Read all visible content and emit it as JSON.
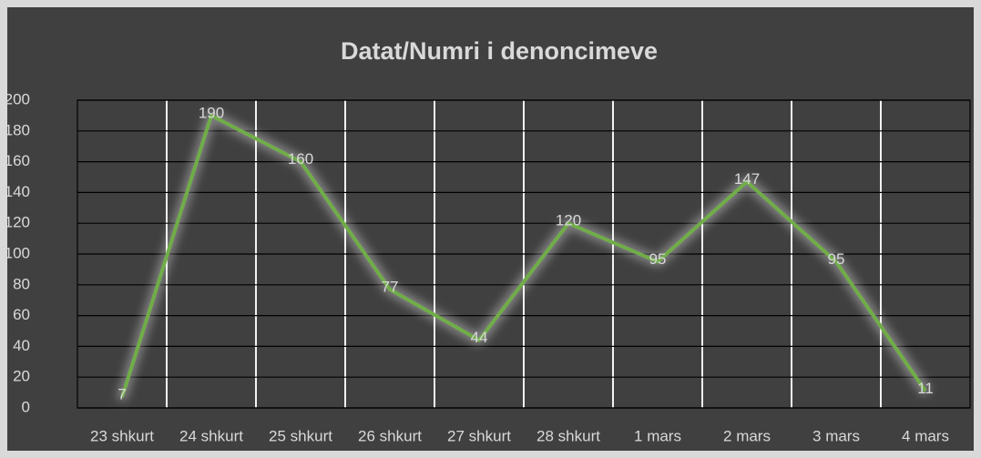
{
  "chart_data": {
    "type": "line",
    "title": "Datat/Numri i denoncimeve",
    "categories": [
      "23 shkurt",
      "24 shkurt",
      "25 shkurt",
      "26 shkurt",
      "27 shkurt",
      "28 shkurt",
      "1 mars",
      "2 mars",
      "3 mars",
      "4 mars"
    ],
    "series": [
      {
        "name": "Numri i denoncimeve",
        "color": "#70ad47",
        "values": [
          7,
          190,
          160,
          77,
          44,
          120,
          95,
          147,
          95,
          11
        ]
      }
    ],
    "ylim": [
      0,
      200
    ],
    "yticks": [
      0,
      20,
      40,
      60,
      80,
      100,
      120,
      140,
      160,
      180,
      200
    ],
    "grid": true,
    "data_labels": true
  }
}
